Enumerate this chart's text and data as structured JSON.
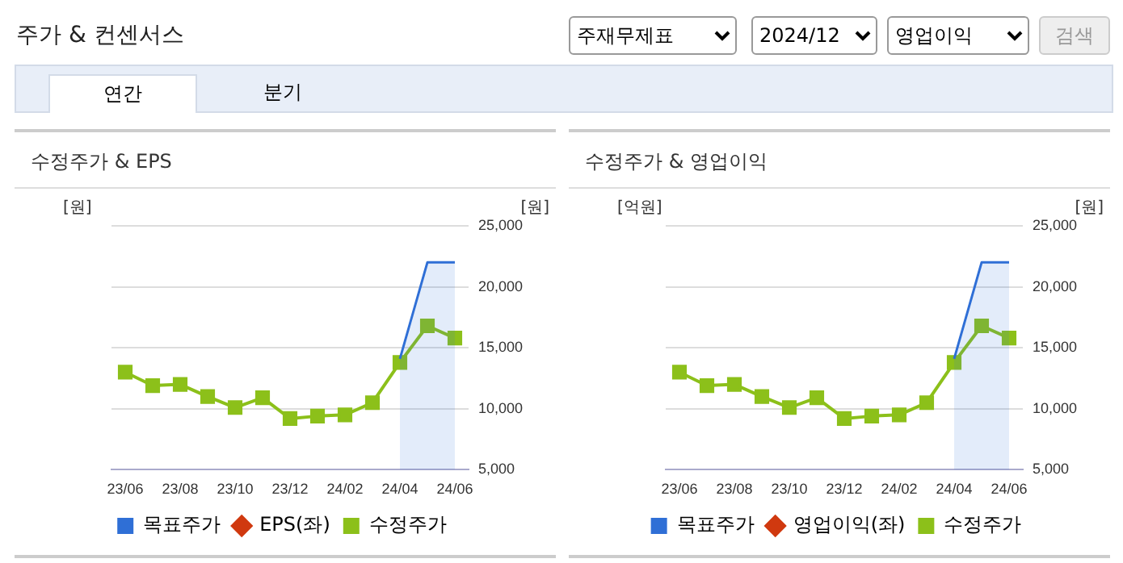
{
  "chart_data": [
    {
      "type": "other",
      "title": "주가 & 컨센서스",
      "annotations": [
        "주재무제표",
        "2024/12",
        "영업이익",
        "검색",
        "연간",
        "분기"
      ]
    },
    {
      "type": "line",
      "title": "수정주가 & EPS",
      "ylabel": "[원]",
      "y2label": "[원]",
      "categories": [
        "23/06",
        null,
        "23/08",
        null,
        "23/10",
        null,
        "23/12",
        null,
        "24/02",
        null,
        "24/04",
        null,
        "24/06"
      ],
      "series": [
        {
          "name": "목표주가",
          "type": "area",
          "axis": "y2",
          "color": "#2f6fd6",
          "marker": "none",
          "values": [
            null,
            null,
            null,
            null,
            null,
            null,
            null,
            null,
            null,
            null,
            14100,
            22000,
            22000
          ]
        },
        {
          "name": "EPS(좌)",
          "type": "line",
          "color": "#d0390f",
          "marker": "diamond",
          "values": [
            null,
            null,
            null,
            null,
            null,
            null,
            null,
            null,
            null,
            null,
            null,
            null,
            null
          ]
        },
        {
          "name": "수정주가",
          "type": "line",
          "axis": "y2",
          "color": "#8cc01a",
          "marker": "square",
          "values": [
            13000,
            11900,
            12000,
            11000,
            10100,
            10900,
            9200,
            9400,
            9500,
            10500,
            13800,
            16800,
            15800
          ]
        }
      ],
      "y2lim": [
        5000,
        25000
      ],
      "y2ticks": [
        {
          "value": 5000,
          "label": "5,000"
        },
        {
          "value": 10000,
          "label": "10,000"
        },
        {
          "value": 15000,
          "label": "15,000"
        },
        {
          "value": 20000,
          "label": "20,000"
        },
        {
          "value": 25000,
          "label": "25,000"
        }
      ],
      "grid": "y",
      "legend": "bottom"
    },
    {
      "type": "line",
      "title": "수정주가 & 영업이익",
      "ylabel": "[억원]",
      "y2label": "[원]",
      "categories": [
        "23/06",
        null,
        "23/08",
        null,
        "23/10",
        null,
        "23/12",
        null,
        "24/02",
        null,
        "24/04",
        null,
        "24/06"
      ],
      "series": [
        {
          "name": "목표주가",
          "type": "area",
          "axis": "y2",
          "color": "#2f6fd6",
          "marker": "none",
          "values": [
            null,
            null,
            null,
            null,
            null,
            null,
            null,
            null,
            null,
            null,
            14100,
            22000,
            22000
          ]
        },
        {
          "name": "영업이익(좌)",
          "type": "line",
          "color": "#d0390f",
          "marker": "diamond",
          "values": [
            null,
            null,
            null,
            null,
            null,
            null,
            null,
            null,
            null,
            null,
            null,
            null,
            null
          ]
        },
        {
          "name": "수정주가",
          "type": "line",
          "axis": "y2",
          "color": "#8cc01a",
          "marker": "square",
          "values": [
            13000,
            11900,
            12000,
            11000,
            10100,
            10900,
            9200,
            9400,
            9500,
            10500,
            13800,
            16800,
            15800
          ]
        }
      ],
      "y2lim": [
        5000,
        25000
      ],
      "y2ticks": [
        {
          "value": 5000,
          "label": "5,000"
        },
        {
          "value": 10000,
          "label": "10,000"
        },
        {
          "value": 15000,
          "label": "15,000"
        },
        {
          "value": 20000,
          "label": "20,000"
        },
        {
          "value": 25000,
          "label": "25,000"
        }
      ],
      "grid": "y",
      "legend": "bottom"
    }
  ]
}
